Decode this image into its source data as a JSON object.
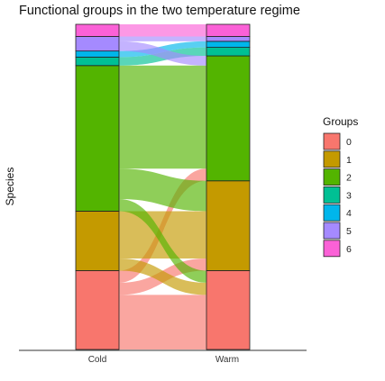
{
  "chart_data": {
    "type": "alluvial",
    "title": "Functional groups in the two temperature regime",
    "xlabel": "",
    "ylabel": "Species",
    "axes": [
      "Cold",
      "Warm"
    ],
    "legend": {
      "title": "Groups",
      "position": "right"
    },
    "groups": [
      {
        "name": "0",
        "color": "#F8766D"
      },
      {
        "name": "1",
        "color": "#C49A00"
      },
      {
        "name": "2",
        "color": "#53B400"
      },
      {
        "name": "3",
        "color": "#00C094"
      },
      {
        "name": "4",
        "color": "#00B6EB"
      },
      {
        "name": "5",
        "color": "#A58AFF"
      },
      {
        "name": "6",
        "color": "#FB61D7"
      }
    ],
    "flows": [
      {
        "cold": "0",
        "warm": "0",
        "count": 45,
        "color": "#F8766D"
      },
      {
        "cold": "0",
        "warm": "1",
        "count": 10,
        "color": "#F8766D"
      },
      {
        "cold": "0",
        "warm": "2",
        "count": 10,
        "color": "#F8766D"
      },
      {
        "cold": "1",
        "warm": "0",
        "count": 10,
        "color": "#C49A00"
      },
      {
        "cold": "1",
        "warm": "1",
        "count": 39,
        "color": "#C49A00"
      },
      {
        "cold": "2",
        "warm": "0",
        "count": 10,
        "color": "#53B400"
      },
      {
        "cold": "2",
        "warm": "1",
        "count": 25,
        "color": "#53B400"
      },
      {
        "cold": "2",
        "warm": "2",
        "count": 85,
        "color": "#53B400"
      },
      {
        "cold": "3",
        "warm": "3",
        "count": 7,
        "color": "#00C094"
      },
      {
        "cold": "4",
        "warm": "4",
        "count": 5,
        "color": "#00B6EB"
      },
      {
        "cold": "5",
        "warm": "2",
        "count": 8,
        "color": "#A58AFF"
      },
      {
        "cold": "5",
        "warm": "5",
        "count": 4,
        "color": "#A58AFF"
      },
      {
        "cold": "6",
        "warm": "6",
        "count": 10,
        "color": "#FB61D7"
      }
    ]
  }
}
